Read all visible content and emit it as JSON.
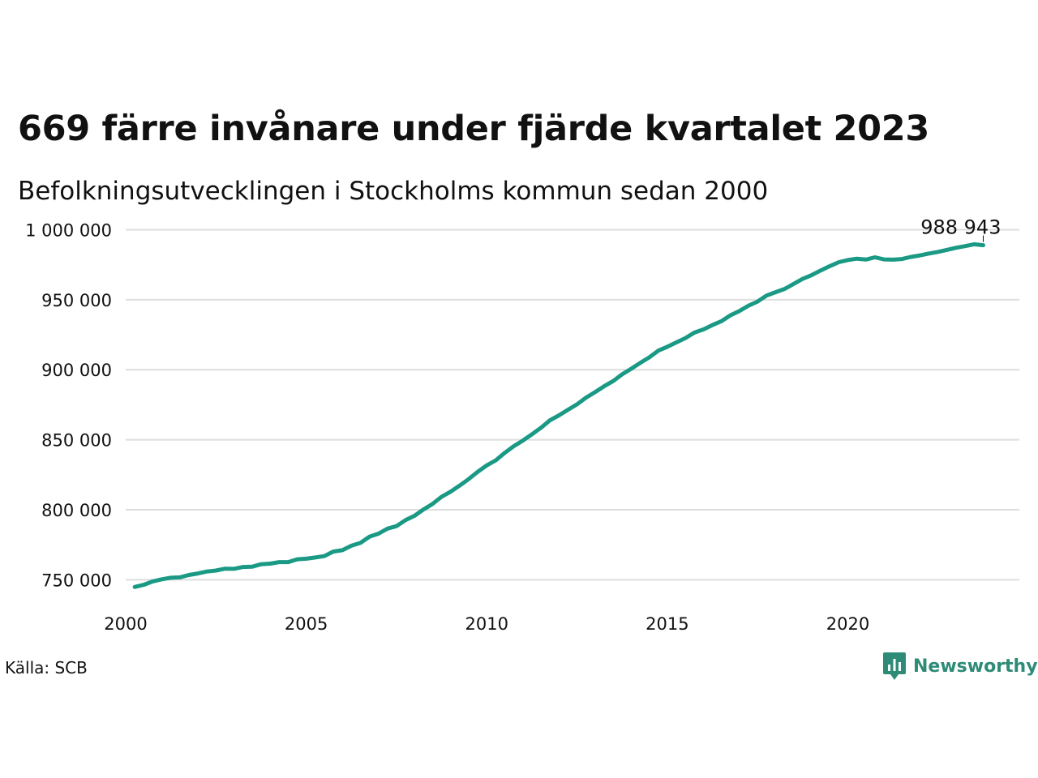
{
  "title": "669 färre invånare under fjärde kvartalet 2023",
  "subtitle": "Befolkningsutvecklingen i Stockholms kommun sedan 2000",
  "source": "Källa: SCB",
  "brand": {
    "name": "Newsworthy",
    "color": "#2e8b77",
    "icon": "newsworthy-logo-icon"
  },
  "colors": {
    "line": "#1a9985",
    "grid": "#dedede",
    "text": "#111111"
  },
  "chart_data": {
    "type": "line",
    "title": "669 färre invånare under fjärde kvartalet 2023",
    "subtitle": "Befolkningsutvecklingen i Stockholms kommun sedan 2000",
    "xlim": [
      2000,
      2024.75
    ],
    "ylim": [
      745000,
      1002000
    ],
    "xticks": [
      2000,
      2005,
      2010,
      2015,
      2020
    ],
    "xtick_labels": [
      "2000",
      "2005",
      "2010",
      "2015",
      "2020"
    ],
    "yticks": [
      750000,
      800000,
      850000,
      900000,
      950000,
      1000000
    ],
    "ytick_labels": [
      "750 000",
      "800 000",
      "850 000",
      "900 000",
      "950 000",
      "1 000 000"
    ],
    "grid": "horizontal",
    "last_value_label": "988 943",
    "x": [
      2000.25,
      2000.5,
      2000.75,
      2001.0,
      2001.25,
      2001.5,
      2001.75,
      2002.0,
      2002.25,
      2002.5,
      2002.75,
      2003.0,
      2003.25,
      2003.5,
      2003.75,
      2004.0,
      2004.25,
      2004.5,
      2004.75,
      2005.0,
      2005.25,
      2005.5,
      2005.75,
      2006.0,
      2006.25,
      2006.5,
      2006.75,
      2007.0,
      2007.25,
      2007.5,
      2007.75,
      2008.0,
      2008.25,
      2008.5,
      2008.75,
      2009.0,
      2009.25,
      2009.5,
      2009.75,
      2010.0,
      2010.25,
      2010.5,
      2010.75,
      2011.0,
      2011.25,
      2011.5,
      2011.75,
      2012.0,
      2012.25,
      2012.5,
      2012.75,
      2013.0,
      2013.25,
      2013.5,
      2013.75,
      2014.0,
      2014.25,
      2014.5,
      2014.75,
      2015.0,
      2015.25,
      2015.5,
      2015.75,
      2016.0,
      2016.25,
      2016.5,
      2016.75,
      2017.0,
      2017.25,
      2017.5,
      2017.75,
      2018.0,
      2018.25,
      2018.5,
      2018.75,
      2019.0,
      2019.25,
      2019.5,
      2019.75,
      2020.0,
      2020.25,
      2020.5,
      2020.75,
      2021.0,
      2021.25,
      2021.5,
      2021.75,
      2022.0,
      2022.25,
      2022.5,
      2022.75,
      2023.0,
      2023.25,
      2023.5,
      2023.75
    ],
    "series": [
      {
        "values": [
          744800,
          746400,
          748800,
          750300,
          751400,
          751700,
          753400,
          754500,
          755900,
          756600,
          757900,
          757800,
          759100,
          759300,
          761100,
          761500,
          762600,
          762600,
          764600,
          765000,
          765900,
          766900,
          770100,
          771100,
          774300,
          776300,
          780700,
          782900,
          786500,
          788300,
          792600,
          795700,
          800200,
          804200,
          809300,
          812900,
          817300,
          821900,
          827100,
          831700,
          835300,
          840700,
          845400,
          849400,
          853900,
          858500,
          863900,
          867400,
          871400,
          875300,
          880100,
          884000,
          888200,
          891900,
          896700,
          900700,
          904900,
          908800,
          913600,
          916400,
          919500,
          922600,
          926500,
          928800,
          931900,
          934700,
          938900,
          942000,
          945800,
          948700,
          953000,
          955400,
          957700,
          961300,
          964900,
          967600,
          970900,
          974000,
          976800,
          978300,
          979300,
          978700,
          980300,
          978800,
          978600,
          979100,
          980600,
          981700,
          983000,
          984200,
          985600,
          987100,
          988300,
          989612,
          988943
        ]
      }
    ]
  }
}
